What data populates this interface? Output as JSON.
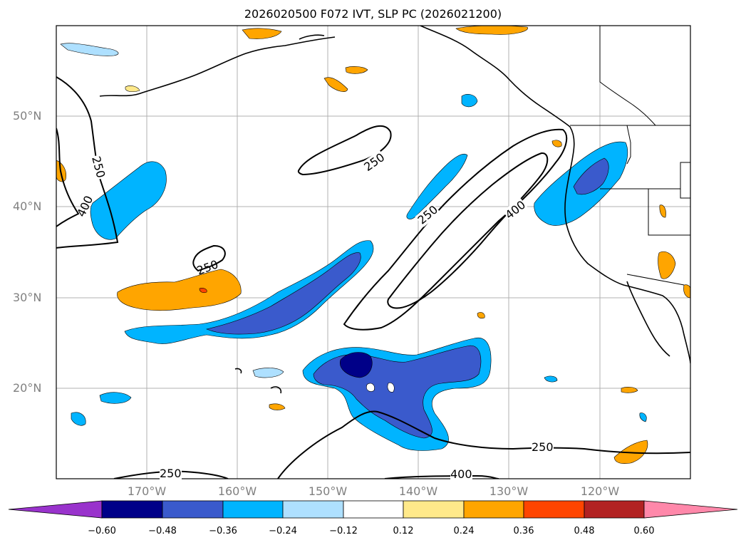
{
  "title": "2026020500 F072 IVT, SLP PC (2026021200)",
  "map": {
    "lat_labels": [
      "50°N",
      "40°N",
      "30°N",
      "20°N"
    ],
    "lon_labels": [
      "170°W",
      "160°W",
      "150°W",
      "140°W",
      "130°W",
      "120°W"
    ],
    "contour_labels": [
      "250",
      "400",
      "250",
      "250",
      "400",
      "250",
      "400",
      "250",
      "250"
    ]
  },
  "colorbar": {
    "ticks": [
      "−0.60",
      "−0.48",
      "−0.36",
      "−0.24",
      "−0.12",
      "0.12",
      "0.24",
      "0.36",
      "0.48",
      "0.60"
    ],
    "colors": [
      "#9933cc",
      "#000088",
      "#3a5acc",
      "#00b4ff",
      "#aee0ff",
      "#ffffff",
      "#ffe98a",
      "#ffa500",
      "#ff4500",
      "#b22222",
      "#ff88aa"
    ]
  }
}
